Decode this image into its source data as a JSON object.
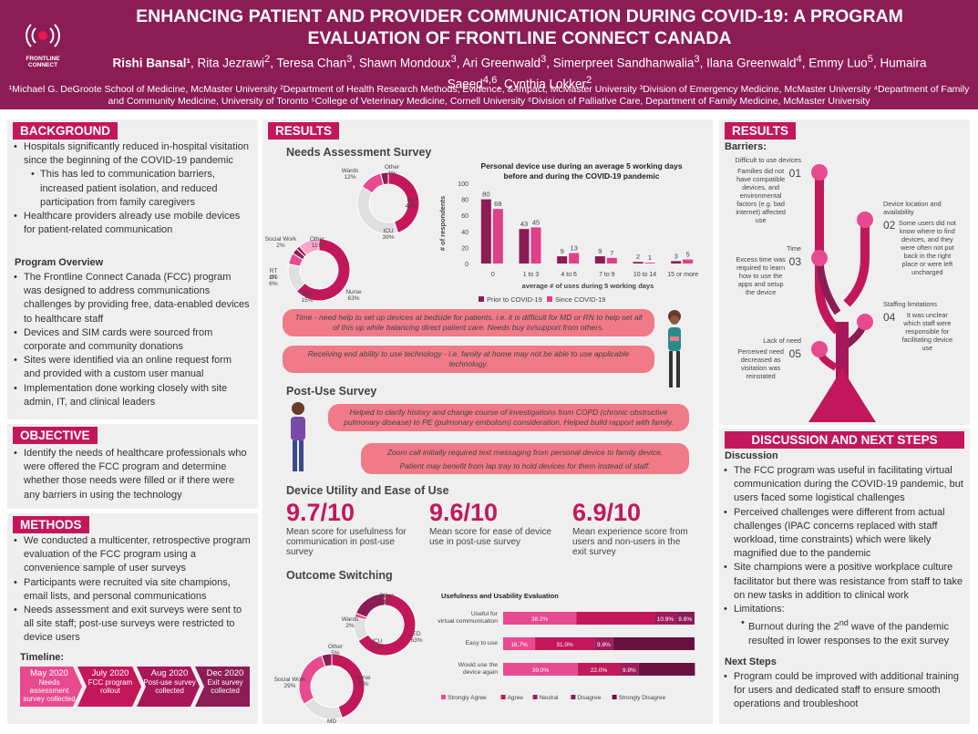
{
  "header": {
    "title_line1": "ENHANCING PATIENT AND PROVIDER COMMUNICATION DURING COVID-19: A PROGRAM",
    "title_line2": "EVALUATION OF FRONTLINE CONNECT CANADA",
    "authors_html": "<b>Rishi Bansal¹</b>, Rita Jezrawi<sup>2</sup>, Teresa Chan<sup>3</sup>, Shawn Mondoux<sup>3</sup>, Ari Greenwald<sup>3</sup>, Simerpreet Sandhanwalia<sup>3</sup>, Ilana Greenwald<sup>4</sup>, Emmy Luo<sup>5</sup>, Humaira Saeed<sup>4,6</sup>, Cynthia Lokker<sup>2</sup>",
    "affiliations": "¹Michael G. DeGroote School of Medicine, McMaster University ²Department of Health Research Methods, Evidence, & Impact, McMaster University ³Division of Emergency Medicine, McMaster University ⁴Department of Family and Community Medicine, University of Toronto ⁵College of Veterinary Medicine, Cornell University ⁶Division of Palliative Care, Department of Family Medicine, McMaster University",
    "logo_line1": "FRONTLINE",
    "logo_line2": "CONNECT"
  },
  "background": {
    "heading": "BACKGROUND",
    "items": [
      "Hospitals significantly reduced in-hospital visitation since the beginning of the COVID-19 pandemic",
      "This has led to communication barriers, increased patient isolation, and reduced participation from family caregivers",
      "Healthcare providers already use mobile devices for patient-related communication"
    ],
    "overview_title": "Program Overview",
    "overview": [
      "The Frontline Connect Canada (FCC) program was designed to address communications challenges by providing free, data-enabled devices to healthcare staff",
      "Devices and SIM cards were sourced from corporate and community donations",
      "Sites were identified via an online request form and provided with a custom user manual",
      "Implementation done working closely with site admin, IT, and clinical leaders"
    ]
  },
  "objective": {
    "heading": "OBJECTIVE",
    "items": [
      "Identify the needs of healthcare professionals who were offered the FCC program and determine whether those needs were filled or if there were any barriers in using the technology"
    ]
  },
  "methods": {
    "heading": "METHODS",
    "items": [
      "We conducted a multicenter, retrospective program evaluation of the FCC program using a convenience sample of user surveys",
      "Participants were recruited via site champions, email lists, and personal communications",
      "Needs assessment and exit surveys were sent to all site staff; post-use surveys were restricted to device users"
    ],
    "timeline_title": "Timeline:",
    "timeline": [
      {
        "date": "May 2020",
        "desc": "Needs assessment survey collected"
      },
      {
        "date": "July 2020",
        "desc": "FCC program rollout"
      },
      {
        "date": "Aug 2020",
        "desc": "Post-use survey collected"
      },
      {
        "date": "Dec 2020",
        "desc": "Exit survey collected"
      }
    ]
  },
  "results_mid": {
    "heading": "RESULTS",
    "needs_title": "Needs Assessment Survey",
    "post_title": "Post-Use Survey",
    "utility_title": "Device Utility and Ease of Use",
    "switch_title": "Outcome Switching",
    "quotes": [
      "Time - need help to set up devices at bedside for patients. i.e. it is difficult for MD or RN to help set all of this up while balancing direct patient care. Needs buy in/support from others.",
      "Receiving end ability to use technology - i.e. family at home may not be able to use applicable technology.",
      "Helped to clarify history and change course of investigations from COPD (chronic obstructive pulmonary disease) to PE (pulmonary embolism) consideration. Helped build rapport with family.",
      "Zoom call initially required text messaging from personal device to family device.",
      "Patient may benefit from lap tray to hold devices for them instead of staff."
    ],
    "scores": [
      {
        "value": "9.7/10",
        "caption": "Mean score for usefulness for communication in post-use survey"
      },
      {
        "value": "9.6/10",
        "caption": "Mean score for ease of device use in post-use survey"
      },
      {
        "value": "6.9/10",
        "caption": "Mean experience score from users and non-users in the exit survey"
      }
    ]
  },
  "donuts": {
    "needs_dept": [
      {
        "label": "ED 45%",
        "v": 45
      },
      {
        "label": "ICU 39%",
        "v": 39
      },
      {
        "label": "Wards 12%",
        "v": 12
      },
      {
        "label": "Other 4%",
        "v": 4
      }
    ],
    "needs_role": [
      {
        "label": "Nurse 63%",
        "v": 63
      },
      {
        "label": "MD 15%",
        "v": 15
      },
      {
        "label": "OT 6%",
        "v": 6
      },
      {
        "label": "RT 3%",
        "v": 3
      },
      {
        "label": "Social Work 2%",
        "v": 2
      },
      {
        "label": "Other 11%",
        "v": 11
      }
    ],
    "exit_dept": [
      {
        "label": "ED 63%",
        "v": 63
      },
      {
        "label": "ICU 12%",
        "v": 12
      },
      {
        "label": "Wards 2%",
        "v": 2
      },
      {
        "label": "Other 18%",
        "v": 18
      }
    ],
    "exit_role": [
      {
        "label": "Nurse 45%",
        "v": 45
      },
      {
        "label": "MD 21%",
        "v": 21
      },
      {
        "label": "Social Work 29%",
        "v": 29
      },
      {
        "label": "Other 5%",
        "v": 5
      }
    ]
  },
  "chart_data": [
    {
      "type": "bar",
      "title": "Personal device use during an average 5 working days before and during the COVID-19 pandemic",
      "xlabel": "average # of uses during 5 working days",
      "ylabel": "# of respondents",
      "ylim": [
        0,
        100
      ],
      "yticks": [
        0,
        20,
        40,
        60,
        80,
        100
      ],
      "categories": [
        "0",
        "1 to 3",
        "4 to 6",
        "7 to 9",
        "10 to 14",
        "15 or more"
      ],
      "series": [
        {
          "name": "Prior to COVID-19",
          "color": "#8c1c55",
          "values": [
            80,
            43,
            9,
            9,
            2,
            3
          ]
        },
        {
          "name": "Since COVID-19",
          "color": "#e0408a",
          "values": [
            68,
            45,
            13,
            7,
            1,
            5
          ]
        }
      ]
    },
    {
      "type": "bar",
      "title": "Usefulness and Usability Evaluation",
      "categories": [
        "Useful for virtual communication",
        "Easy to use",
        "Would use the device again"
      ],
      "series": [
        {
          "name": "Strongly Agree",
          "color": "#e84a8f",
          "values": [
            38.2,
            16.7,
            39.0
          ],
          "labels": [
            "38.2%",
            "16.7%",
            "39.0%"
          ]
        },
        {
          "name": "Agree",
          "color": "#c2185b",
          "values": [
            41.1,
            31.0,
            22.0
          ],
          "labels": [
            "",
            "31.0%",
            "22.0%"
          ]
        },
        {
          "name": "Neutral",
          "color": "#a01a5e",
          "values": [
            10.9,
            9.8,
            9.8
          ],
          "labels": [
            "10.9%",
            "9.8%",
            "9.8%"
          ]
        },
        {
          "name": "Disagree",
          "color": "#8c1c55",
          "values": [
            9.8,
            0,
            0
          ],
          "labels": [
            "9.8%",
            "",
            ""
          ]
        },
        {
          "name": "Strongly Disagree",
          "color": "#6a1040",
          "values": [
            0,
            42.5,
            29.4
          ],
          "labels": [
            "",
            "",
            ""
          ]
        }
      ]
    }
  ],
  "results_right": {
    "heading": "RESULTS",
    "barriers_title": "Barriers:",
    "barriers": [
      {
        "num": "01",
        "title": "Difficult to use devices",
        "desc": "Families did not have compatible devices, and environmental factors (e.g. bad internet) affected use"
      },
      {
        "num": "02",
        "title": "Device location and availability",
        "desc": "Some users did not know where to find devices, and they were often not put back in the right place or were left uncharged"
      },
      {
        "num": "03",
        "title": "Time",
        "desc": "Excess time was required to learn how to use the apps and setup the device"
      },
      {
        "num": "04",
        "title": "Staffing limitations",
        "desc": "It was unclear which staff were responsible for facilitating device use"
      },
      {
        "num": "05",
        "title": "Lack of need",
        "desc": "Perceived need decreased as visitation was reinstated"
      }
    ]
  },
  "discussion": {
    "heading": "DISCUSSION AND NEXT STEPS",
    "disc_title": "Discussion",
    "items": [
      "The FCC program was useful in facilitating virtual communication during the COVID-19 pandemic, but users faced some logistical challenges",
      "Perceived challenges were different from actual challenges (IPAC concerns replaced with staff workload, time constraints) which were likely magnified due to the pandemic",
      "Site champions were a positive workplace culture facilitator but there was resistance from staff to take on new tasks in addition to clinical work",
      "Limitations:"
    ],
    "sub_html": "Burnout during the 2<sup>nd</sup> wave of the pandemic resulted in lower responses to the exit survey",
    "next_title": "Next Steps",
    "next": [
      "Program could be improved with additional training for users and dedicated staff to ensure smooth operations and troubleshoot"
    ]
  }
}
